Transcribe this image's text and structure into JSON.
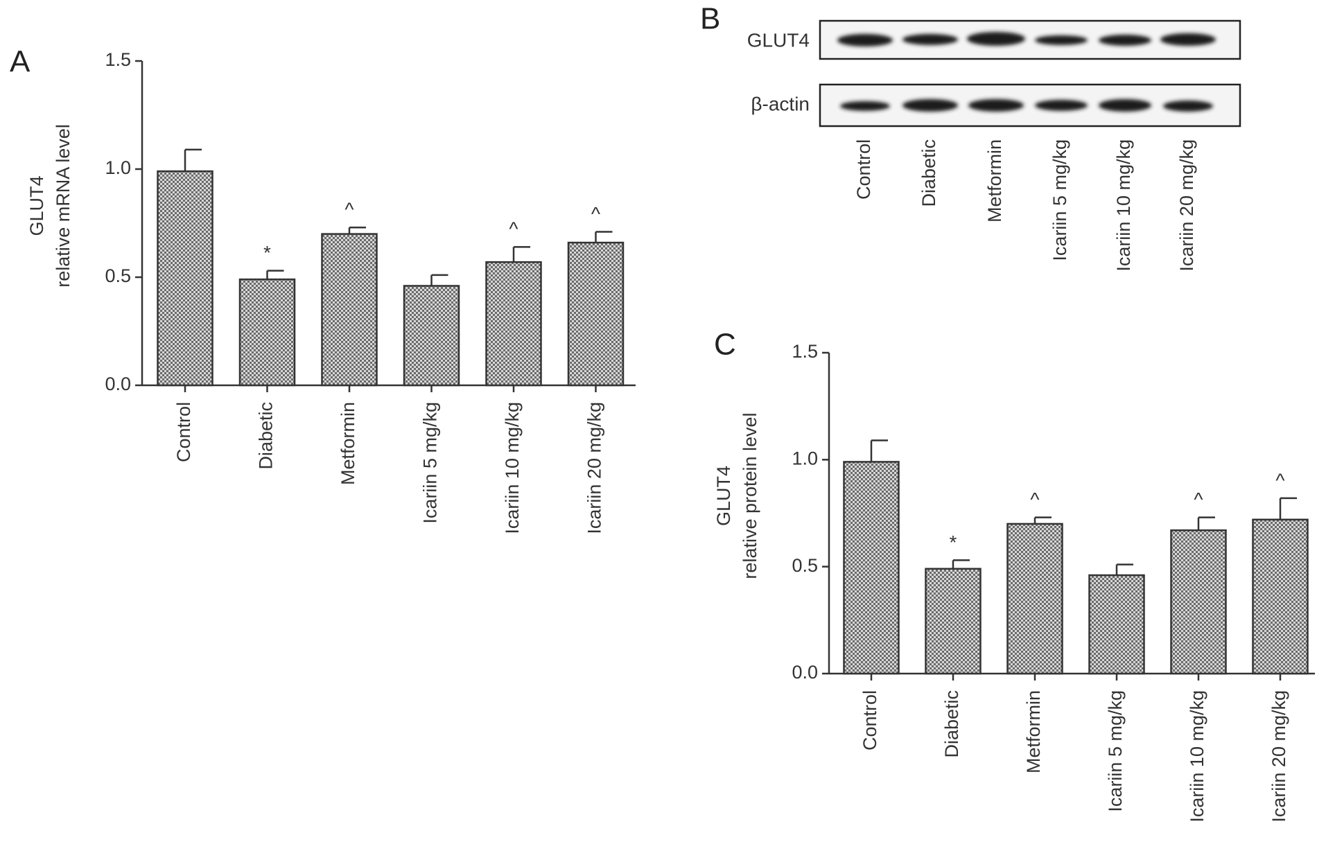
{
  "chart_data": [
    {
      "type": "bar",
      "panel": "A",
      "ylabel": [
        "GLUT4",
        "relative mRNA level"
      ],
      "categories": [
        "Control",
        "Diabetic",
        "Metformin",
        "Icariin 5 mg/kg",
        "Icariin 10 mg/kg",
        "Icariin 20 mg/kg"
      ],
      "values": [
        0.99,
        0.49,
        0.7,
        0.46,
        0.57,
        0.66
      ],
      "errors": [
        0.1,
        0.04,
        0.03,
        0.05,
        0.07,
        0.05
      ],
      "annotations": [
        null,
        "*",
        "^",
        null,
        "^",
        "^"
      ],
      "ylim": [
        0,
        1.5
      ],
      "yticks": [
        {
          "value": 0,
          "label": "0.0"
        },
        0.5,
        {
          "value": 1,
          "label": "1.0"
        },
        1.5
      ],
      "color": "#555555"
    },
    {
      "type": "bar",
      "panel": "C",
      "ylabel": [
        "GLUT4",
        "relative protein level"
      ],
      "categories": [
        "Control",
        "Diabetic",
        "Metformin",
        "Icariin 5 mg/kg",
        "Icariin 10 mg/kg",
        "Icariin 20 mg/kg"
      ],
      "values": [
        0.99,
        0.49,
        0.7,
        0.46,
        0.67,
        0.72
      ],
      "errors": [
        0.1,
        0.04,
        0.03,
        0.05,
        0.06,
        0.1
      ],
      "annotations": [
        null,
        "*",
        "^",
        null,
        "^",
        "^"
      ],
      "ylim": [
        0,
        1.5
      ],
      "yticks": [
        {
          "value": 0,
          "label": "0.0"
        },
        0.5,
        {
          "value": 1,
          "label": "1.0"
        },
        1.5
      ],
      "color": "#555555"
    }
  ],
  "blot": {
    "panel": "B",
    "rows": [
      "GLUT4",
      "β-actin"
    ],
    "lanes": [
      "Control",
      "Diabetic",
      "Metformin",
      "Icariin 5 mg/kg",
      "Icariin 10 mg/kg",
      "Icariin 20 mg/kg"
    ]
  }
}
